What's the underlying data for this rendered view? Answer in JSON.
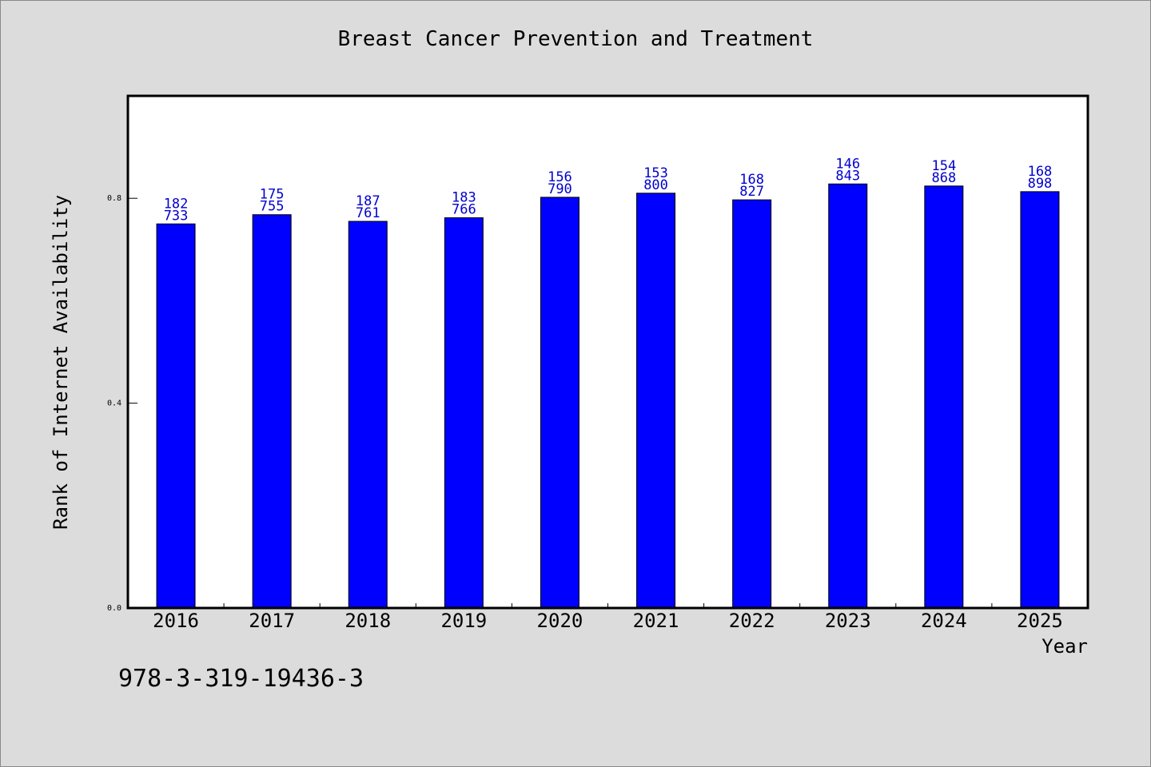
{
  "chart_data": {
    "type": "bar",
    "title": "Breast Cancer Prevention and Treatment",
    "xlabel": "Year",
    "ylabel": "Rank of Internet Availability",
    "categories": [
      "2016",
      "2017",
      "2018",
      "2019",
      "2020",
      "2021",
      "2022",
      "2023",
      "2024",
      "2025"
    ],
    "values": [
      0.75,
      0.768,
      0.755,
      0.762,
      0.802,
      0.81,
      0.797,
      0.828,
      0.824,
      0.813
    ],
    "label_top": [
      "182",
      "175",
      "187",
      "183",
      "156",
      "153",
      "168",
      "146",
      "154",
      "168"
    ],
    "label_bottom": [
      "733",
      "755",
      "761",
      "766",
      "790",
      "800",
      "827",
      "843",
      "868",
      "898"
    ],
    "yticks": [
      "0.0",
      "0.4",
      "0.8"
    ],
    "ylim": [
      0,
      1.0
    ],
    "bar_color": "#0000ff",
    "label_color": "#0000cc",
    "grid": false,
    "legend": "none"
  },
  "footer": {
    "isbn": "978-3-319-19436-3"
  }
}
